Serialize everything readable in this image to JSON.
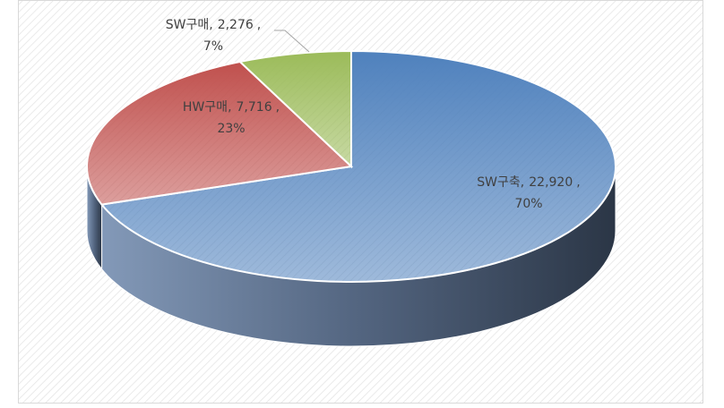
{
  "chart_data": {
    "type": "pie3d",
    "categories": [
      "SW구축",
      "HW구매",
      "SW구매"
    ],
    "values": [
      22920,
      7716,
      2276
    ],
    "value_labels": [
      "22,920",
      "7,716",
      "2,276"
    ],
    "percents": [
      70,
      23,
      7
    ],
    "percent_labels": [
      "70%",
      "23%",
      "7%"
    ],
    "label_separator": ",",
    "colors": [
      "#4f81bd",
      "#c0504d",
      "#9bbb59"
    ]
  }
}
